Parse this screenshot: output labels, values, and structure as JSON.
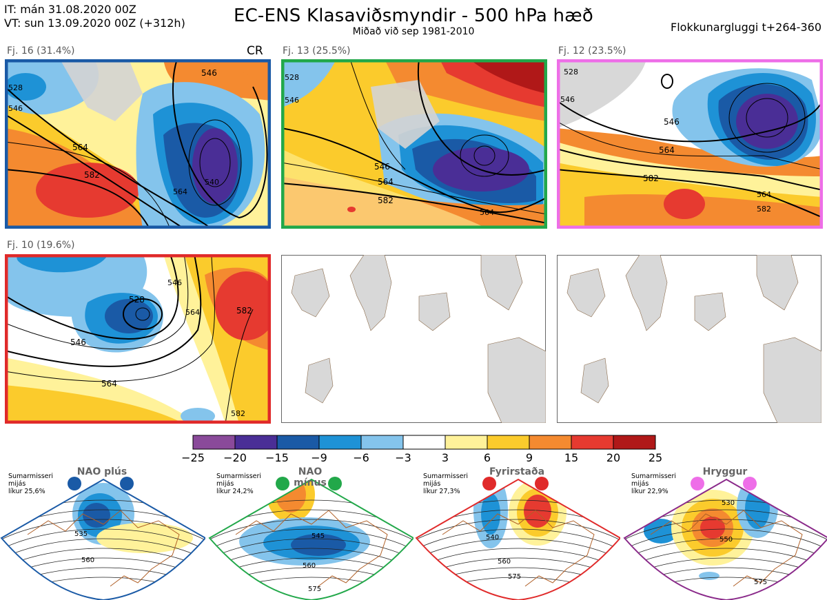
{
  "header": {
    "it_line": "IT: mán 31.08.2020 00Z",
    "vt_line": "VT: sun 13.09.2020 00Z  (+312h)",
    "title": "EC-ENS Klasaviðsmyndir - 500 hPa hæð",
    "subtitle": "Miðað við sep 1981-2010",
    "window": "Flokkunargluggi t+264-360"
  },
  "panels": [
    {
      "label": "Fj. 16 (31.4%)",
      "border": "#1a5aa6",
      "tag": "CR",
      "contours": [
        "546",
        "564",
        "582",
        "528",
        "546",
        "564",
        "540"
      ]
    },
    {
      "label": "Fj. 13 (25.5%)",
      "border": "#22a84a",
      "contours": [
        "546",
        "564",
        "582",
        "546",
        "564",
        "528"
      ]
    },
    {
      "label": "Fj. 12 (23.5%)",
      "border": "#ee6ee8",
      "contours": [
        "528",
        "546",
        "564",
        "582",
        "546",
        "564",
        "582"
      ]
    },
    {
      "label": "Fj. 10 (19.6%)",
      "border": "#e02a2a",
      "contours": [
        "528",
        "546",
        "564",
        "546",
        "564",
        "582",
        "582"
      ]
    }
  ],
  "colorbar": {
    "ticks": [
      "−25",
      "−20",
      "−15",
      "−9",
      "−6",
      "−3",
      "3",
      "6",
      "9",
      "15",
      "20",
      "25"
    ],
    "colors": [
      "#8a4a9a",
      "#4a2e96",
      "#1a5aa6",
      "#1e92d6",
      "#84c4ec",
      "#ffffff",
      "#fff29a",
      "#fbcb2c",
      "#f48a30",
      "#e63a30",
      "#b01818"
    ]
  },
  "regimes": [
    {
      "title": "NAO plús",
      "season": "Sumarmisseri",
      "mean": "mijás",
      "prob": "líkur 25,6%",
      "dot": "#1a5aa6",
      "border": "#1a5aa6",
      "contours": [
        "535",
        "560"
      ]
    },
    {
      "title": "NAO mínus",
      "season": "Sumarmisseri",
      "mean": "mijás",
      "prob": "líkur 24,2%",
      "dot": "#22a84a",
      "border": "#22a84a",
      "contours": [
        "545",
        "560",
        "575"
      ]
    },
    {
      "title": "Fyrirstaða",
      "season": "Sumarmisseri",
      "mean": "mijás",
      "prob": "líkur 27,3%",
      "dot": "#e02a2a",
      "border": "#e02a2a",
      "contours": [
        "540",
        "560",
        "575"
      ]
    },
    {
      "title": "Hryggur",
      "season": "Sumarmisseri",
      "mean": "mijás",
      "prob": "líkur 22,9%",
      "dot": "#ee6ee8",
      "border": "#8a2a8a",
      "contours": [
        "530",
        "550",
        "575"
      ]
    }
  ]
}
